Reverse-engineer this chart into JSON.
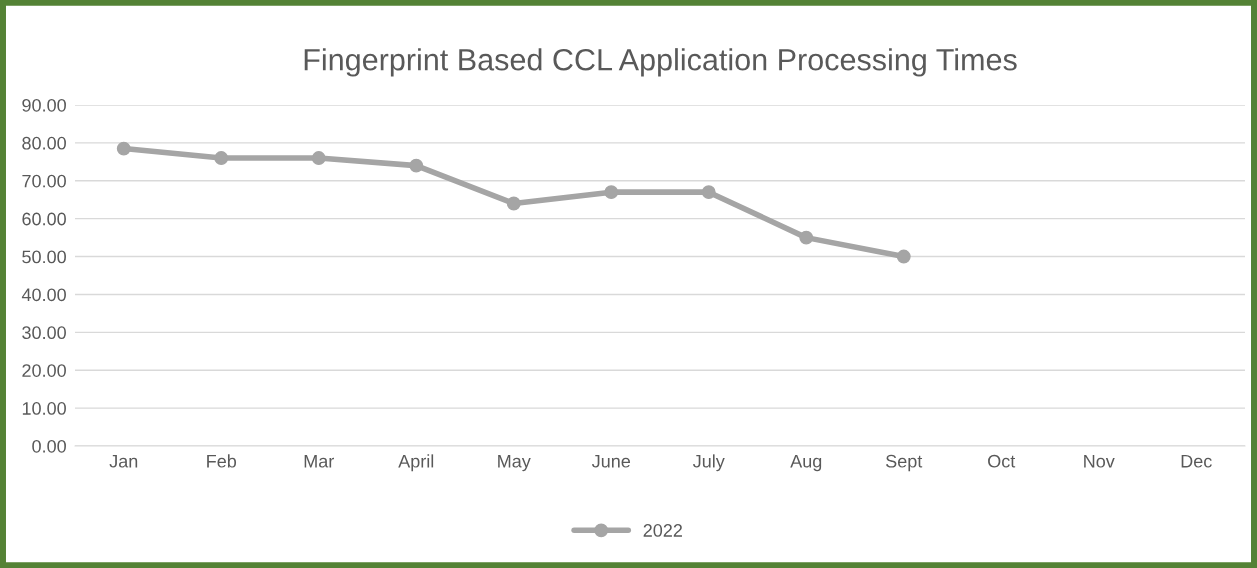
{
  "chart_data": {
    "type": "line",
    "title": "Fingerprint Based CCL Application Processing Times",
    "categories": [
      "Jan",
      "Feb",
      "Mar",
      "April",
      "May",
      "June",
      "July",
      "Aug",
      "Sept",
      "Oct",
      "Nov",
      "Dec"
    ],
    "series": [
      {
        "name": "2022",
        "color": "#a5a5a5",
        "values": [
          78.5,
          76,
          76,
          74,
          64,
          67,
          67,
          55,
          50,
          null,
          null,
          null
        ]
      }
    ],
    "ylim": [
      0,
      90
    ],
    "yticks": [
      {
        "value": 0,
        "label": "0.00"
      },
      {
        "value": 10,
        "label": "10.00"
      },
      {
        "value": 20,
        "label": "20.00"
      },
      {
        "value": 30,
        "label": "30.00"
      },
      {
        "value": 40,
        "label": "40.00"
      },
      {
        "value": 50,
        "label": "50.00"
      },
      {
        "value": 60,
        "label": "60.00"
      },
      {
        "value": 70,
        "label": "70.00"
      },
      {
        "value": 80,
        "label": "80.00"
      },
      {
        "value": 90,
        "label": "90.00"
      }
    ],
    "grid": "y",
    "legend": "bottom",
    "marker": "circle",
    "line_style": "solid"
  }
}
